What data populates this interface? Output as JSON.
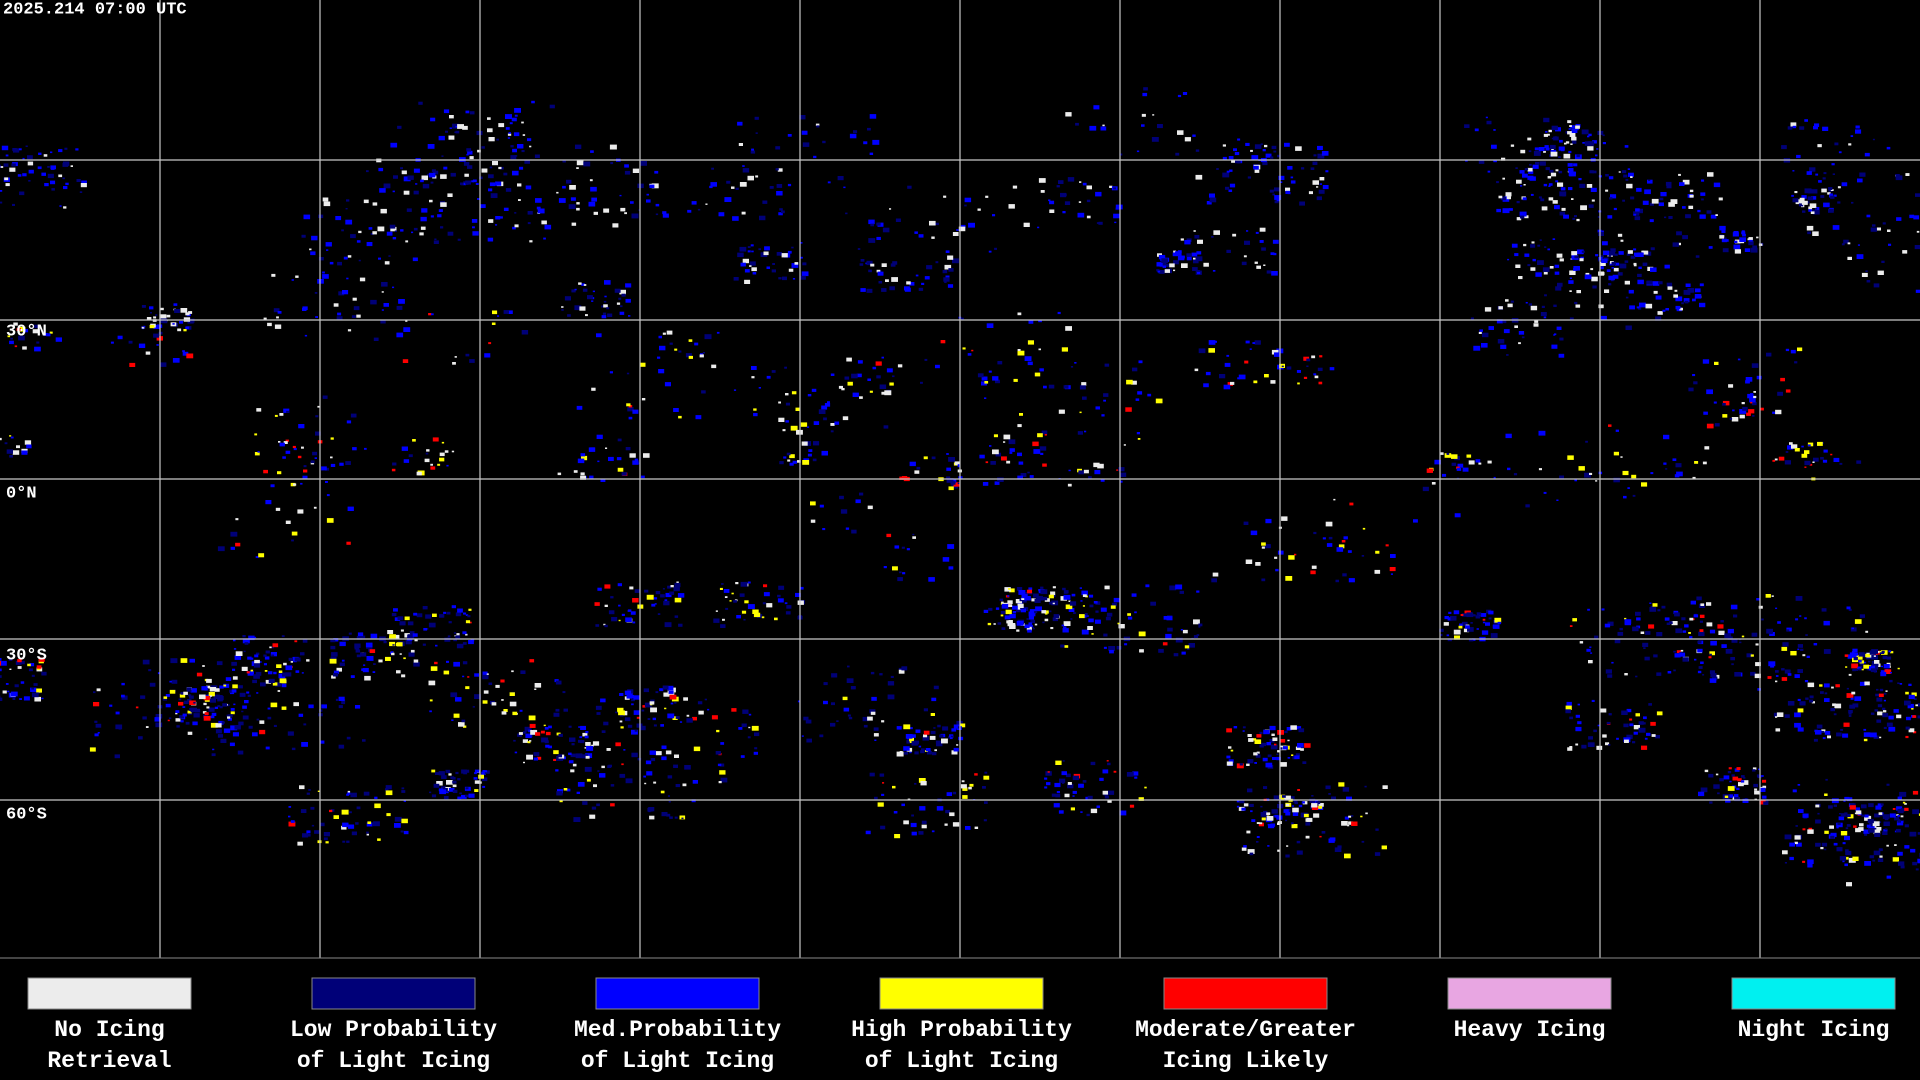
{
  "header": {
    "timestamp": "2025.214 07:00 UTC"
  },
  "map": {
    "latitude_labels": [
      "30°N",
      "0°N",
      "30°S",
      "60°S"
    ]
  },
  "legend": [
    {
      "lines": [
        "No Icing",
        "Retrieval"
      ],
      "color": "#ececec"
    },
    {
      "lines": [
        "Low Probability",
        "of Light Icing"
      ],
      "color": "#000078"
    },
    {
      "lines": [
        "Med.Probability",
        "of Light Icing"
      ],
      "color": "#0000ff"
    },
    {
      "lines": [
        "High Probability",
        "of Light Icing"
      ],
      "color": "#ffff00"
    },
    {
      "lines": [
        "Moderate/Greater",
        "Icing Likely"
      ],
      "color": "#ff0000"
    },
    {
      "lines": [
        "Heavy Icing"
      ],
      "color": "#e8a6e2"
    },
    {
      "lines": [
        "Night Icing"
      ],
      "color": "#00f0f0"
    }
  ]
}
